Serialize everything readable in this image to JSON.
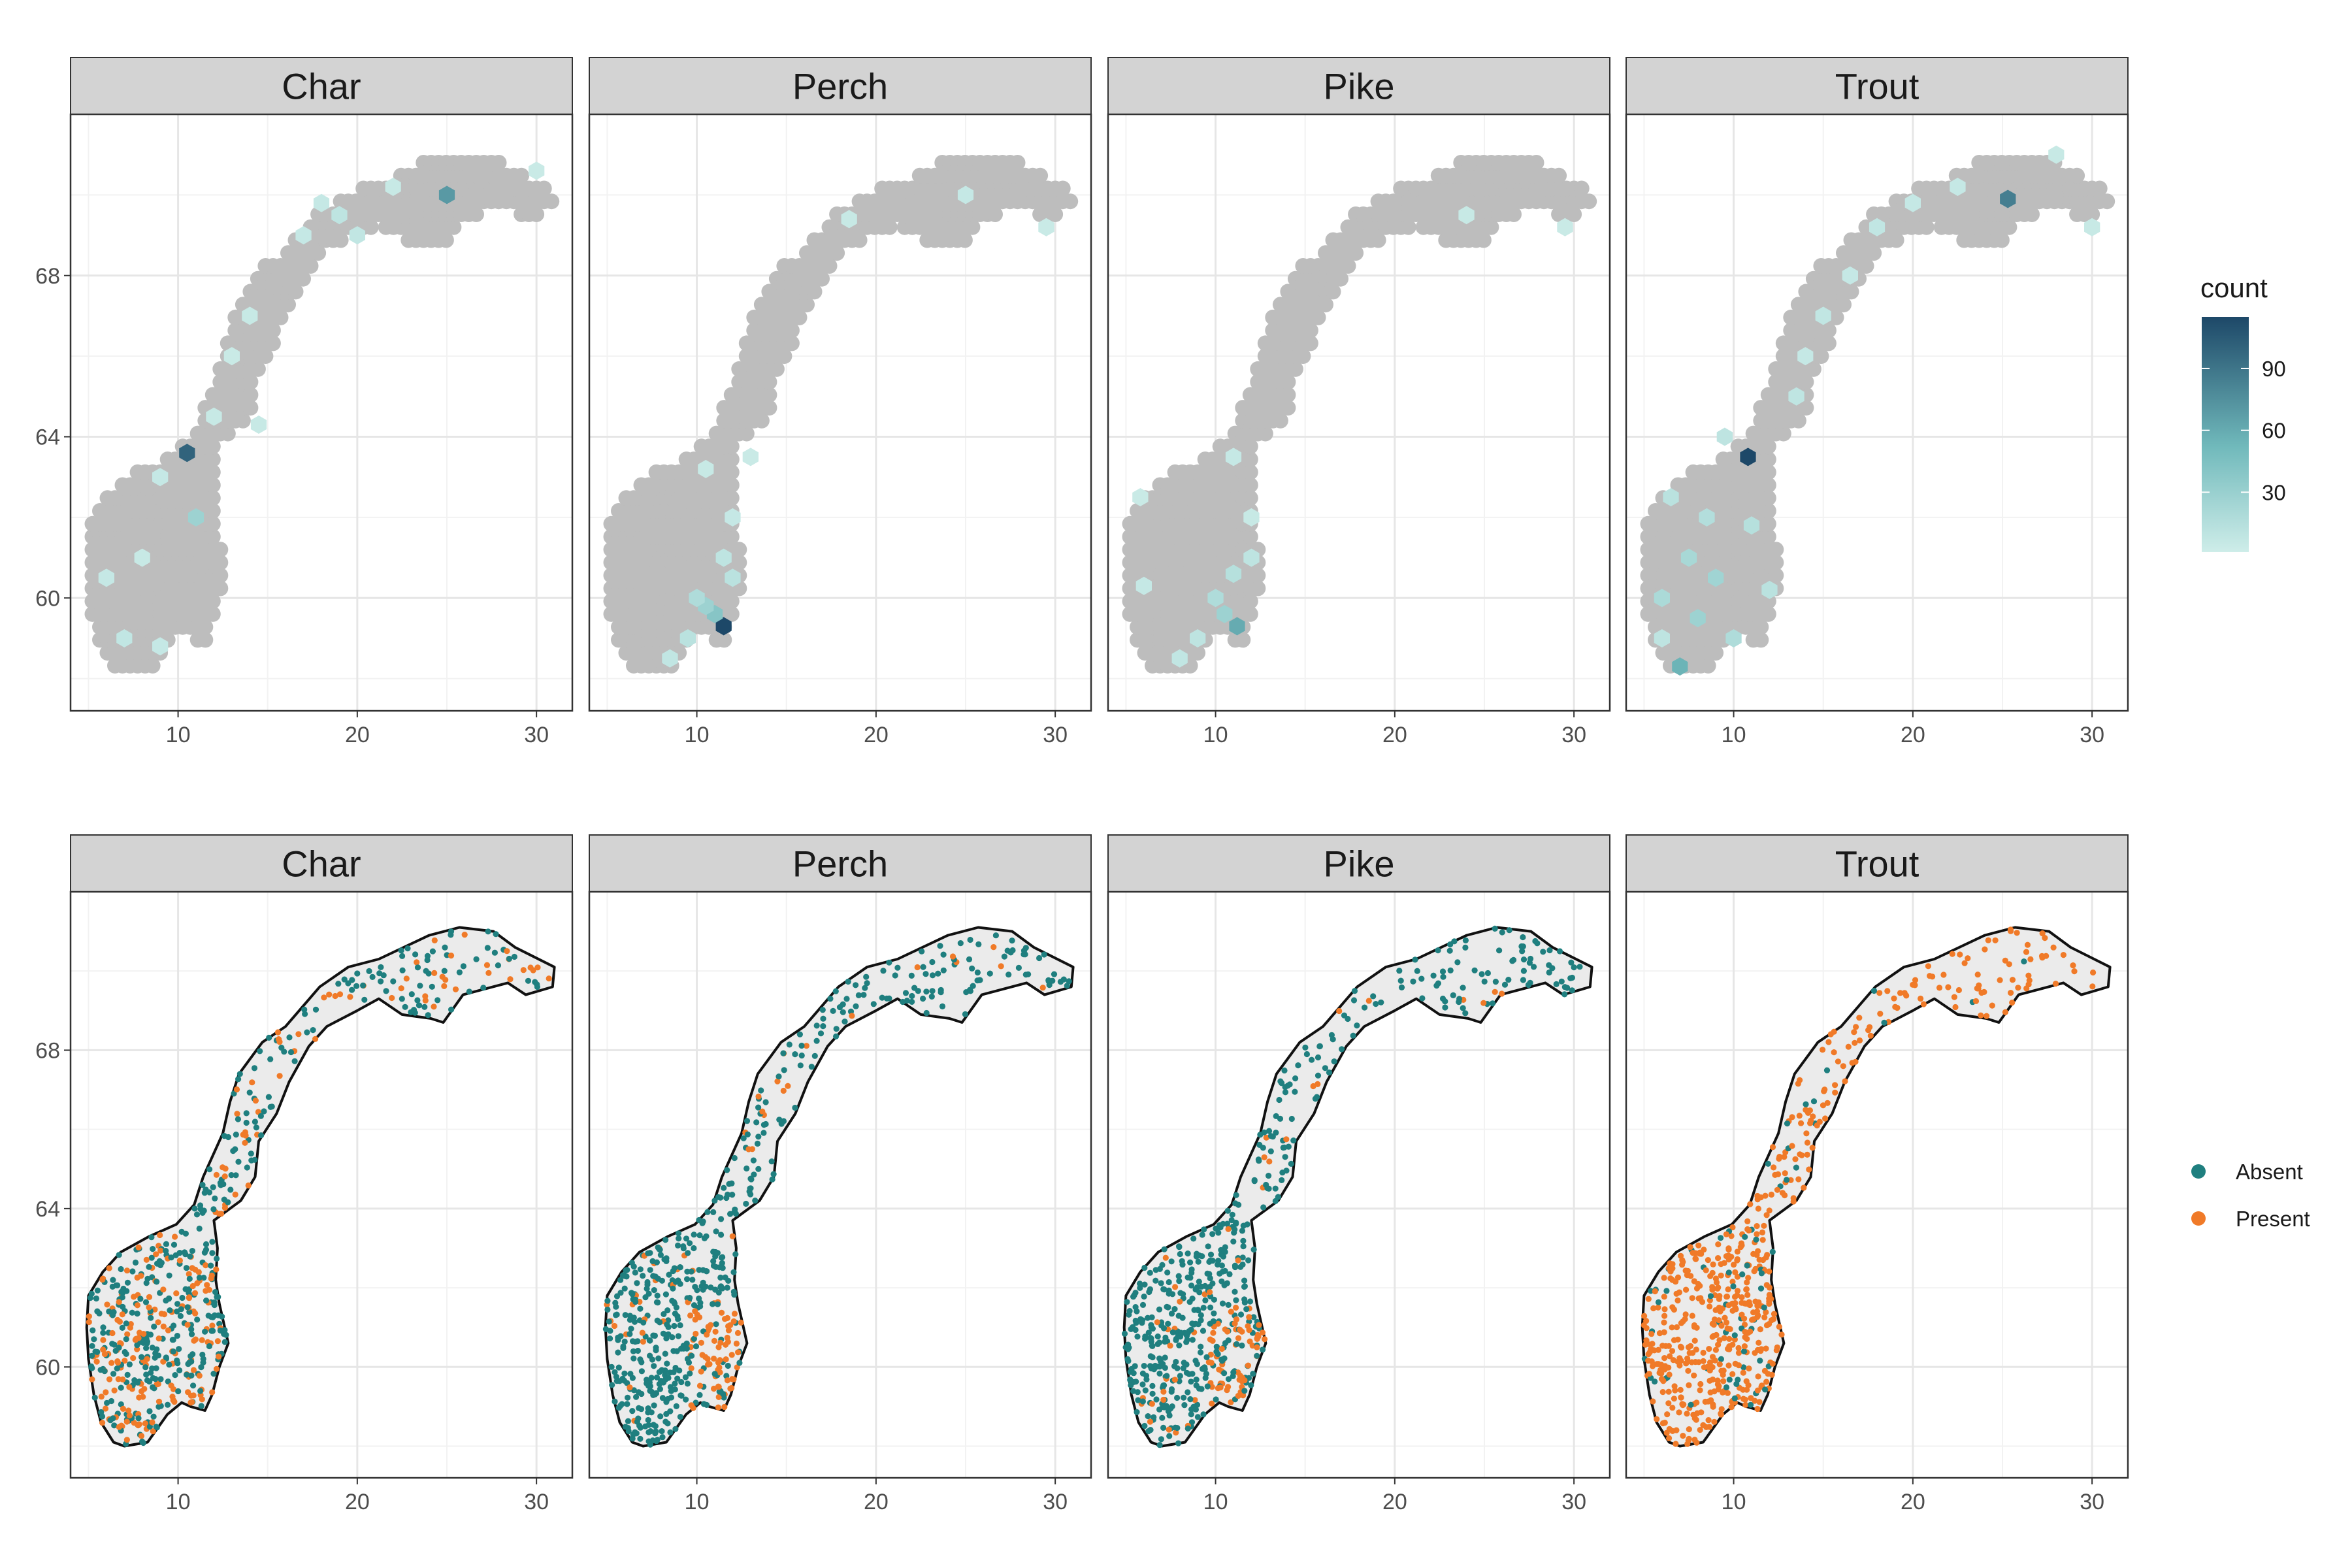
{
  "chart_data": [
    {
      "type": "heatmap",
      "panels": [
        "Char",
        "Perch",
        "Pike",
        "Trout"
      ],
      "xlabel": "",
      "ylabel": "",
      "x_ticks": [
        10,
        20,
        30
      ],
      "y_ticks": [
        60,
        64,
        68
      ],
      "xlim": [
        4,
        32
      ],
      "ylim": [
        57.2,
        72.0
      ],
      "grid": true,
      "legend": {
        "title": "count",
        "ticks": [
          30,
          60,
          90
        ],
        "range": [
          1,
          115
        ],
        "placement": "right",
        "colors": [
          "#ceede9",
          "#1d4868"
        ]
      },
      "cells": {
        "Char": [
          [
            25,
            70,
            70
          ],
          [
            10.5,
            63.6,
            100
          ],
          [
            11,
            62,
            28
          ],
          [
            19,
            69.5,
            10
          ],
          [
            17,
            69,
            6
          ],
          [
            20,
            69,
            8
          ],
          [
            14,
            67,
            5
          ],
          [
            13,
            66,
            4
          ],
          [
            12,
            64.5,
            5
          ],
          [
            9,
            63,
            6
          ],
          [
            8,
            61,
            5
          ],
          [
            6,
            60.5,
            6
          ],
          [
            7,
            59,
            8
          ],
          [
            9,
            58.8,
            6
          ],
          [
            14.5,
            64.3,
            5
          ],
          [
            18,
            69.8,
            6
          ],
          [
            22,
            70.2,
            5
          ],
          [
            30,
            70.6,
            4
          ]
        ],
        "Perch": [
          [
            11.5,
            59.3,
            115
          ],
          [
            11,
            59.6,
            40
          ],
          [
            10.5,
            59.8,
            28
          ],
          [
            10,
            60,
            18
          ],
          [
            12,
            60.5,
            12
          ],
          [
            11.5,
            61,
            10
          ],
          [
            9.5,
            59,
            12
          ],
          [
            8.5,
            58.5,
            8
          ],
          [
            12,
            62,
            6
          ],
          [
            10.5,
            63.2,
            5
          ],
          [
            13,
            63.5,
            4
          ],
          [
            18.5,
            69.4,
            5
          ],
          [
            25,
            70,
            6
          ],
          [
            29.5,
            69.2,
            4
          ]
        ],
        "Pike": [
          [
            11.2,
            59.3,
            60
          ],
          [
            10.5,
            59.6,
            28
          ],
          [
            10,
            60,
            18
          ],
          [
            11,
            60.6,
            14
          ],
          [
            12,
            61,
            10
          ],
          [
            9,
            59,
            10
          ],
          [
            8,
            58.5,
            8
          ],
          [
            6,
            60.3,
            6
          ],
          [
            12,
            62,
            5
          ],
          [
            11,
            63.5,
            6
          ],
          [
            24,
            69.5,
            5
          ],
          [
            29.5,
            69.2,
            4
          ],
          [
            5.8,
            62.5,
            4
          ]
        ],
        "Trout": [
          [
            10.8,
            63.5,
            115
          ],
          [
            25.3,
            69.9,
            85
          ],
          [
            7,
            58.3,
            55
          ],
          [
            8,
            59.5,
            28
          ],
          [
            9,
            60.5,
            26
          ],
          [
            7.5,
            61,
            22
          ],
          [
            6,
            60,
            20
          ],
          [
            10,
            59,
            18
          ],
          [
            8.5,
            62,
            16
          ],
          [
            11,
            61.8,
            14
          ],
          [
            12,
            60.2,
            12
          ],
          [
            6.5,
            62.5,
            12
          ],
          [
            9.5,
            64,
            10
          ],
          [
            13.5,
            65,
            9
          ],
          [
            15,
            67,
            8
          ],
          [
            18,
            69.2,
            8
          ],
          [
            20,
            69.8,
            6
          ],
          [
            22.5,
            70.2,
            6
          ],
          [
            28,
            71,
            5
          ],
          [
            30,
            69.2,
            5
          ],
          [
            16.5,
            68,
            6
          ],
          [
            14,
            66,
            6
          ],
          [
            6,
            59,
            10
          ]
        ]
      }
    },
    {
      "type": "scatter",
      "panels": [
        "Char",
        "Perch",
        "Pike",
        "Trout"
      ],
      "xlabel": "",
      "ylabel": "",
      "x_ticks": [
        10,
        20,
        30
      ],
      "y_ticks": [
        60,
        64,
        68
      ],
      "xlim": [
        4,
        32
      ],
      "ylim": [
        57.2,
        72.0
      ],
      "grid": true,
      "series": [
        {
          "name": "Absent",
          "color": "#1f7f7f"
        },
        {
          "name": "Present",
          "color": "#f07a28"
        }
      ],
      "legend": {
        "placement": "right"
      },
      "present_share": {
        "Char": 0.35,
        "Perch": 0.28,
        "Pike": 0.22,
        "Trout": 0.9
      }
    }
  ],
  "colors": {
    "land_fill_top": "#bdbdbd",
    "land_fill_bottom": "#ebebeb",
    "strip_fill": "#d3d3d3",
    "grid": "#e6e6e6"
  }
}
